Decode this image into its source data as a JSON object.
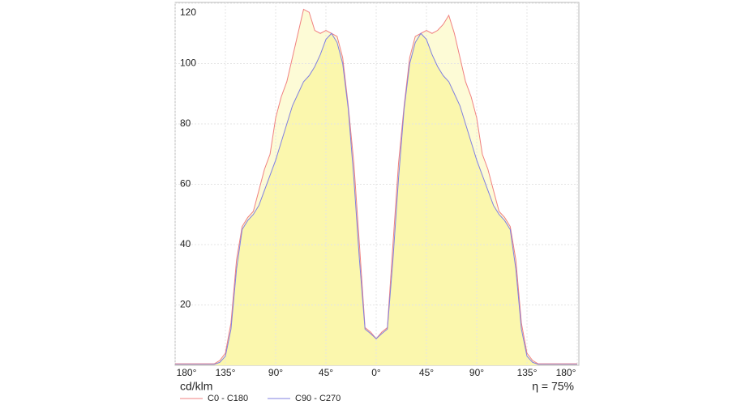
{
  "chart_data": {
    "type": "line",
    "y_unit": "cd/klm",
    "efficiency": "η = 75%",
    "x": [
      -180,
      -175,
      -170,
      -165,
      -160,
      -155,
      -150,
      -145,
      -140,
      -135,
      -130,
      -125,
      -120,
      -115,
      -110,
      -105,
      -100,
      -95,
      -90,
      -85,
      -80,
      -75,
      -70,
      -65,
      -60,
      -55,
      -50,
      -45,
      -40,
      -35,
      -30,
      -25,
      -20,
      -15,
      -10,
      -5,
      0,
      5,
      10,
      15,
      20,
      25,
      30,
      35,
      40,
      45,
      50,
      55,
      60,
      65,
      70,
      75,
      80,
      85,
      90,
      95,
      100,
      105,
      110,
      115,
      120,
      125,
      130,
      135,
      140,
      145,
      150,
      155,
      160,
      165,
      170,
      175,
      180
    ],
    "series": [
      {
        "name": "C0 - C180",
        "color": "#f08080",
        "fill": "#fdfbd6",
        "values": [
          0.5,
          0.5,
          0.5,
          0.5,
          0.5,
          0.5,
          0.5,
          0.5,
          1.6,
          4,
          14,
          35,
          46,
          49,
          51,
          58,
          65,
          70,
          82,
          89,
          94,
          102,
          110,
          118,
          117,
          111,
          110,
          111,
          110,
          109,
          102,
          86,
          67,
          40,
          12.5,
          11,
          8.8,
          11,
          12.5,
          40,
          67,
          86,
          102,
          109,
          110,
          111,
          110,
          111,
          113,
          116,
          110,
          102,
          94,
          89,
          82,
          70,
          65,
          58,
          51,
          49,
          46,
          35,
          14,
          4,
          1.6,
          0.5,
          0.5,
          0.5,
          0.5,
          0.5,
          0.5,
          0.5,
          0.5
        ]
      },
      {
        "name": "C90 - C270",
        "color": "#8080e0",
        "fill": "#fbf7ad",
        "values": [
          0.3,
          0.3,
          0.3,
          0.3,
          0.3,
          0.3,
          0.3,
          0.3,
          1,
          3,
          12,
          32,
          45,
          48,
          50,
          53,
          58,
          63,
          68,
          74,
          80,
          86,
          90,
          94,
          96,
          99,
          103,
          108,
          110,
          107,
          100,
          85,
          62,
          35,
          12,
          10.5,
          8.8,
          10.5,
          12,
          35,
          62,
          85,
          100,
          107,
          110,
          108,
          103,
          99,
          96,
          94,
          90,
          86,
          80,
          74,
          68,
          63,
          58,
          53,
          50,
          48,
          45,
          32,
          12,
          3,
          1,
          0.3,
          0.3,
          0.3,
          0.3,
          0.3,
          0.3,
          0.3,
          0.3
        ]
      }
    ],
    "xlim": [
      -180,
      180
    ],
    "xticks": [
      {
        "value": -180,
        "label": "180°"
      },
      {
        "value": -135,
        "label": "135°"
      },
      {
        "value": -90,
        "label": "90°"
      },
      {
        "value": -45,
        "label": "45°"
      },
      {
        "value": 0,
        "label": "0°"
      },
      {
        "value": 45,
        "label": "45°"
      },
      {
        "value": 90,
        "label": "90°"
      },
      {
        "value": 135,
        "label": "135°"
      },
      {
        "value": 180,
        "label": "180°"
      }
    ],
    "ylim": [
      0,
      120
    ],
    "yticks": [
      20,
      40,
      60,
      80,
      100,
      120
    ],
    "grid": true,
    "legend": "bottom-left"
  }
}
